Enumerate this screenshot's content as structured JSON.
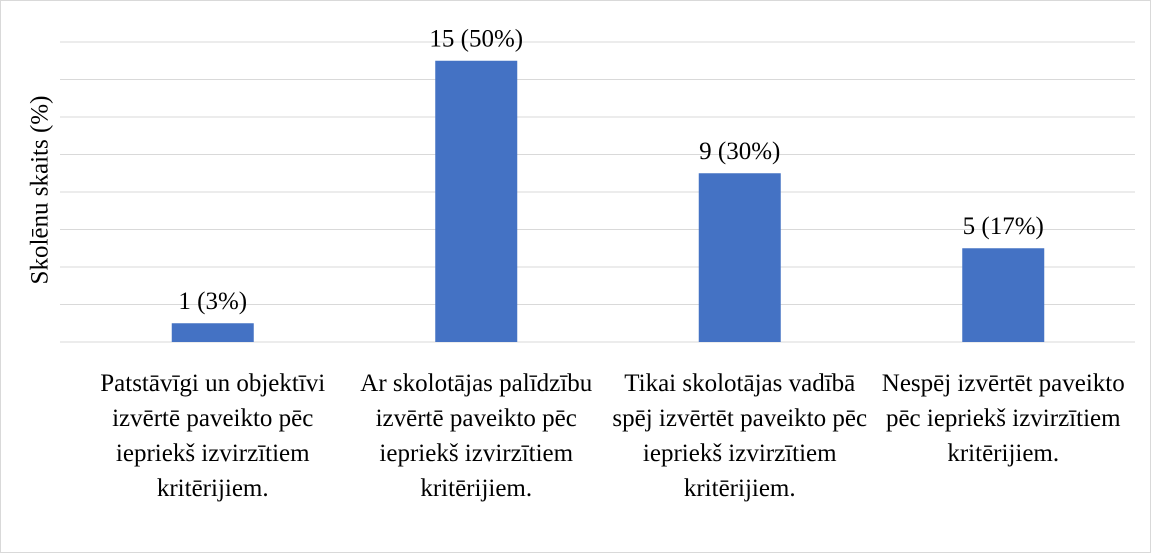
{
  "chart_data": {
    "type": "bar",
    "y_axis_label": "Skolēnu skaits (%)",
    "categories": [
      "Patstāvīgi un objektīvi izvērtē paveikto pēc iepriekš izvirzītiem kritērijiem.",
      "Ar skolotājas palīdzību izvērtē paveikto pēc iepriekš izvirzītiem kritērijiem.",
      "Tikai skolotājas vadībā spēj izvērtēt paveikto pēc iepriekš izvirzītiem kritērijiem.",
      "Nespēj izvērtēt paveikto pēc iepriekš izvirzītiem kritērijiem."
    ],
    "values": [
      1,
      15,
      9,
      5
    ],
    "value_labels": [
      "1 (3%)",
      "15 (50%)",
      "9 (30%)",
      "5 (17%)"
    ],
    "color": "#4472c4",
    "ylim": [
      0,
      16
    ],
    "yticks": [
      0,
      2,
      4,
      6,
      8,
      10,
      12,
      14,
      16
    ],
    "grid": true,
    "show_tick_labels": false
  }
}
